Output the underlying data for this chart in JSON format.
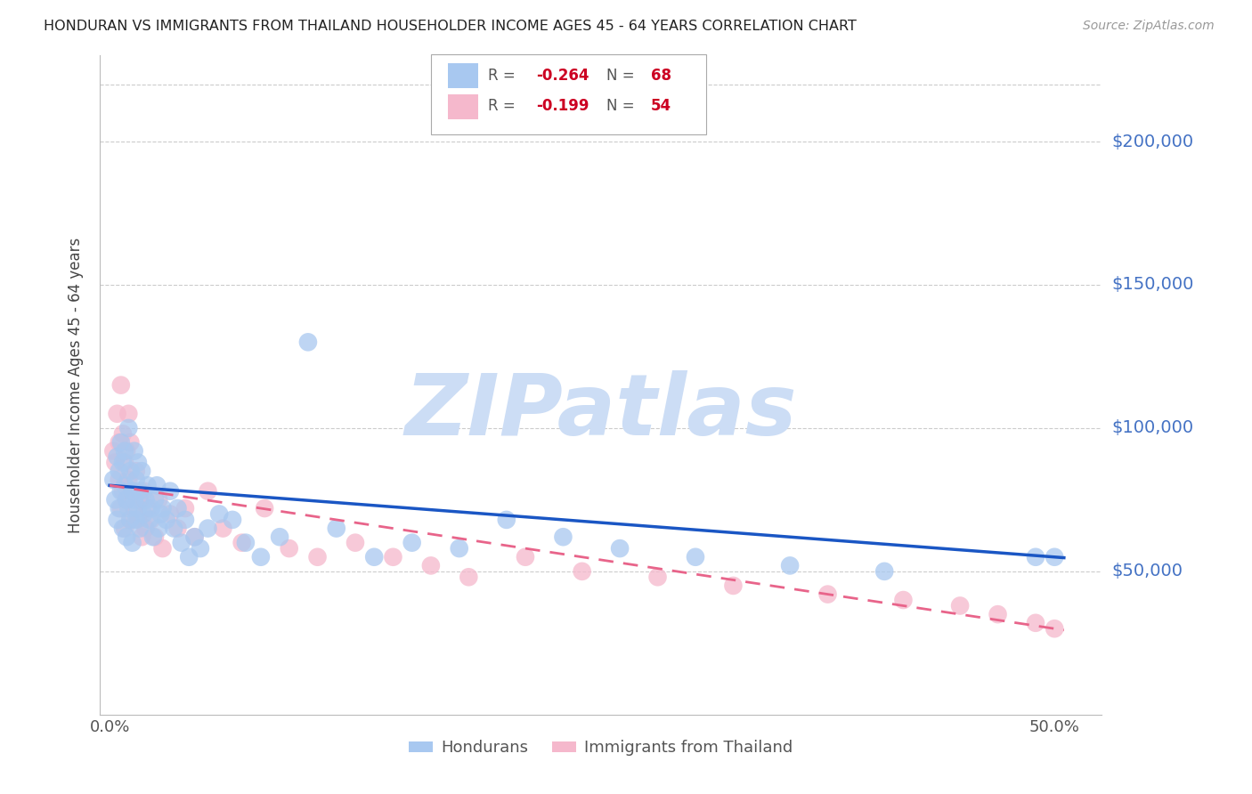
{
  "title": "HONDURAN VS IMMIGRANTS FROM THAILAND HOUSEHOLDER INCOME AGES 45 - 64 YEARS CORRELATION CHART",
  "source": "Source: ZipAtlas.com",
  "ylabel": "Householder Income Ages 45 - 64 years",
  "xlabel_ticks": [
    "0.0%",
    "",
    "",
    "",
    "",
    "50.0%"
  ],
  "xlabel_vals": [
    0.0,
    0.1,
    0.2,
    0.3,
    0.4,
    0.5
  ],
  "ytick_labels": [
    "$50,000",
    "$100,000",
    "$150,000",
    "$200,000"
  ],
  "ytick_vals": [
    50000,
    100000,
    150000,
    200000
  ],
  "ylim": [
    0,
    230000
  ],
  "xlim": [
    -0.005,
    0.525
  ],
  "background_color": "#ffffff",
  "grid_color": "#cccccc",
  "blue_line_color": "#1a56c4",
  "pink_line_color": "#e8648a",
  "blue_scatter_color": "#a8c8f0",
  "pink_scatter_color": "#f5b8cc",
  "right_label_color": "#4472c4",
  "watermark": "ZIPatlas",
  "watermark_color": "#ccddf5",
  "blue_scatter_x": [
    0.002,
    0.003,
    0.004,
    0.004,
    0.005,
    0.005,
    0.006,
    0.006,
    0.007,
    0.007,
    0.008,
    0.008,
    0.009,
    0.009,
    0.01,
    0.01,
    0.011,
    0.011,
    0.012,
    0.012,
    0.013,
    0.013,
    0.014,
    0.014,
    0.015,
    0.015,
    0.016,
    0.016,
    0.017,
    0.018,
    0.019,
    0.02,
    0.021,
    0.022,
    0.023,
    0.024,
    0.025,
    0.026,
    0.027,
    0.028,
    0.03,
    0.032,
    0.034,
    0.036,
    0.038,
    0.04,
    0.042,
    0.045,
    0.048,
    0.052,
    0.058,
    0.065,
    0.072,
    0.08,
    0.09,
    0.105,
    0.12,
    0.14,
    0.16,
    0.185,
    0.21,
    0.24,
    0.27,
    0.31,
    0.36,
    0.41,
    0.49,
    0.5
  ],
  "blue_scatter_y": [
    82000,
    75000,
    90000,
    68000,
    85000,
    72000,
    95000,
    78000,
    88000,
    65000,
    92000,
    80000,
    75000,
    62000,
    100000,
    72000,
    85000,
    68000,
    78000,
    60000,
    92000,
    75000,
    68000,
    82000,
    88000,
    72000,
    65000,
    78000,
    85000,
    70000,
    75000,
    80000,
    68000,
    72000,
    62000,
    75000,
    80000,
    65000,
    70000,
    72000,
    68000,
    78000,
    65000,
    72000,
    60000,
    68000,
    55000,
    62000,
    58000,
    65000,
    70000,
    68000,
    60000,
    55000,
    62000,
    130000,
    65000,
    55000,
    60000,
    58000,
    68000,
    62000,
    58000,
    55000,
    52000,
    50000,
    55000,
    55000
  ],
  "pink_scatter_x": [
    0.002,
    0.003,
    0.004,
    0.005,
    0.005,
    0.006,
    0.006,
    0.007,
    0.007,
    0.008,
    0.008,
    0.009,
    0.009,
    0.01,
    0.01,
    0.011,
    0.011,
    0.012,
    0.013,
    0.014,
    0.015,
    0.016,
    0.017,
    0.018,
    0.019,
    0.02,
    0.022,
    0.024,
    0.026,
    0.028,
    0.032,
    0.036,
    0.04,
    0.045,
    0.052,
    0.06,
    0.07,
    0.082,
    0.095,
    0.11,
    0.13,
    0.15,
    0.17,
    0.19,
    0.22,
    0.25,
    0.29,
    0.33,
    0.38,
    0.42,
    0.45,
    0.47,
    0.49,
    0.5
  ],
  "pink_scatter_y": [
    92000,
    88000,
    105000,
    82000,
    95000,
    115000,
    72000,
    98000,
    78000,
    88000,
    65000,
    92000,
    75000,
    105000,
    82000,
    95000,
    68000,
    78000,
    72000,
    85000,
    68000,
    75000,
    62000,
    78000,
    65000,
    72000,
    68000,
    62000,
    75000,
    58000,
    70000,
    65000,
    72000,
    62000,
    78000,
    65000,
    60000,
    72000,
    58000,
    55000,
    60000,
    55000,
    52000,
    48000,
    55000,
    50000,
    48000,
    45000,
    42000,
    40000,
    38000,
    35000,
    32000,
    30000
  ]
}
